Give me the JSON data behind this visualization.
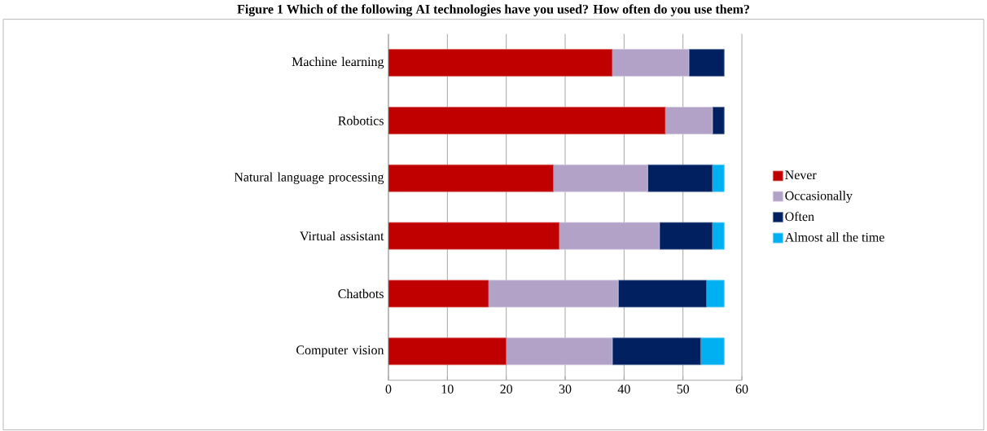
{
  "chart_data": {
    "type": "bar",
    "orientation": "horizontal",
    "stacked": true,
    "title": "Figure 1 Which of the following AI technologies have you used? How often do you use them?",
    "categories": [
      "Machine learning",
      "Robotics",
      "Natural language processing",
      "Virtual assistant",
      "Chatbots",
      "Computer vision"
    ],
    "series": [
      {
        "name": "Never",
        "color": "#c00000",
        "values": [
          38,
          47,
          28,
          29,
          17,
          20
        ]
      },
      {
        "name": "Occasionally",
        "color": "#b3a2c7",
        "values": [
          13,
          8,
          16,
          17,
          22,
          18
        ]
      },
      {
        "name": "Often",
        "color": "#002060",
        "values": [
          6,
          2,
          11,
          9,
          15,
          15
        ]
      },
      {
        "name": "Almost all the time",
        "color": "#00b0f0",
        "values": [
          0,
          0,
          2,
          2,
          3,
          4
        ]
      }
    ],
    "xlim": [
      0,
      60
    ],
    "xticks": [
      0,
      10,
      20,
      30,
      40,
      50,
      60
    ],
    "grid": "x",
    "legend": "right"
  }
}
